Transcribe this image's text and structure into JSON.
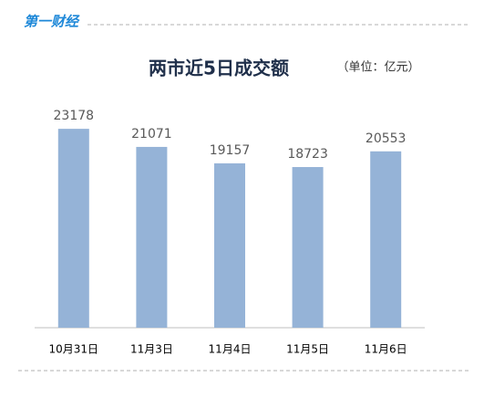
{
  "logo": "第一财经",
  "chart_data": {
    "type": "bar",
    "title": "两市近5日成交额",
    "subtitle": "（单位：亿元）",
    "categories": [
      "10月31日",
      "11月3日",
      "11月4日",
      "11月5日",
      "11月6日"
    ],
    "values": [
      23178,
      21071,
      19157,
      18723,
      20553
    ],
    "color": "#95b3d7",
    "ylim": [
      0,
      25000
    ]
  }
}
